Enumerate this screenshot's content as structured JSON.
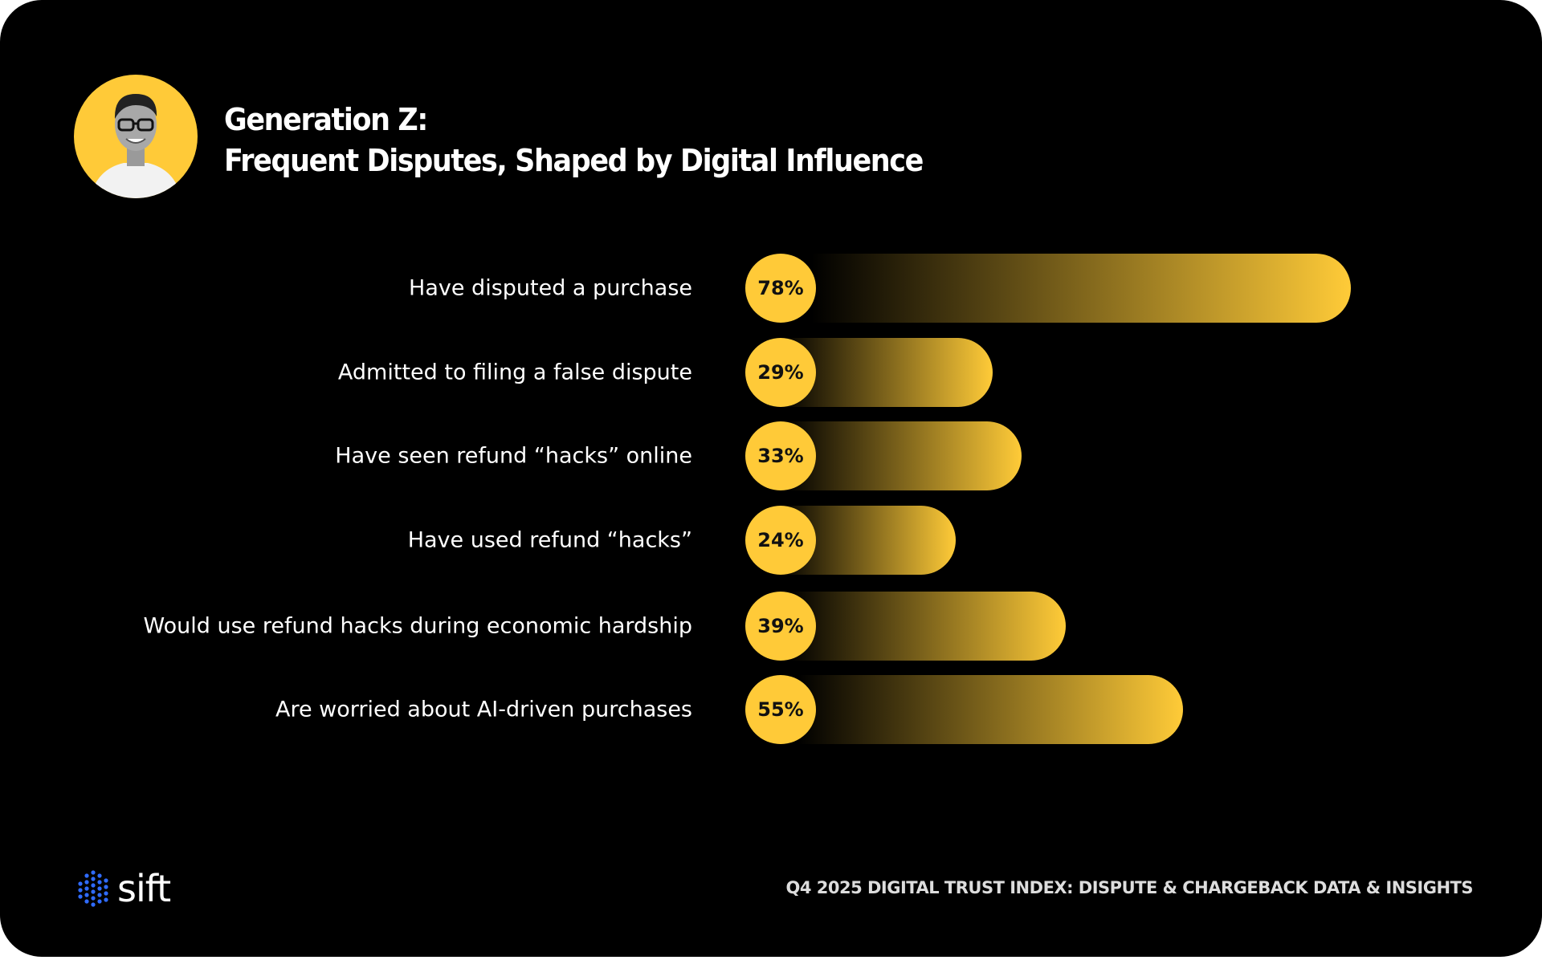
{
  "header": {
    "title_line1": "Generation Z:",
    "title_line2": "Frequent Disputes, Shaped by Digital Influence"
  },
  "chart_data": {
    "type": "bar",
    "orientation": "horizontal",
    "categories": [
      "Have disputed a purchase",
      "Admitted to filing a false dispute",
      "Have seen refund “hacks” online",
      "Have used refund “hacks”",
      "Would use refund hacks during economic hardship",
      "Are worried about AI-driven purchases"
    ],
    "values": [
      78,
      29,
      33,
      24,
      39,
      55
    ],
    "value_labels": [
      "78%",
      "29%",
      "33%",
      "24%",
      "39%",
      "55%"
    ],
    "unit": "%",
    "grid": false,
    "colors": {
      "bar": "#ffca38",
      "background": "#000000"
    }
  },
  "footer": {
    "logo_text": "sift",
    "logo_dot_color": "#2f6bff",
    "source": "Q4 2025 DIGITAL TRUST INDEX: DISPUTE & CHARGEBACK DATA & INSIGHTS"
  }
}
